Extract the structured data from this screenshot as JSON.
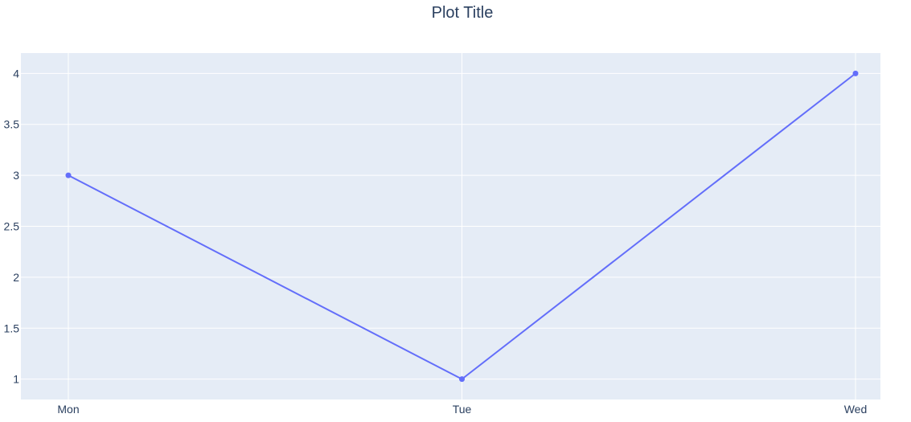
{
  "chart_data": {
    "type": "line",
    "title": "Plot Title",
    "xlabel": "",
    "ylabel": "",
    "categories": [
      "Mon",
      "Tue",
      "Wed"
    ],
    "series": [
      {
        "values": [
          3,
          1,
          4
        ],
        "color": "#636efa",
        "mode": "lines+markers"
      }
    ],
    "ylim": [
      0.8,
      4.2
    ],
    "y_ticks": [
      1,
      1.5,
      2,
      2.5,
      3,
      3.5,
      4
    ],
    "y_tick_labels": [
      "1",
      "1.5",
      "2",
      "2.5",
      "3",
      "3.5",
      "4"
    ],
    "grid": true,
    "legend": "none",
    "colors": {
      "plot_background": "#e5ecf6",
      "paper_background": "#ffffff",
      "grid": "#ffffff",
      "text": "#2a3f5f"
    }
  }
}
